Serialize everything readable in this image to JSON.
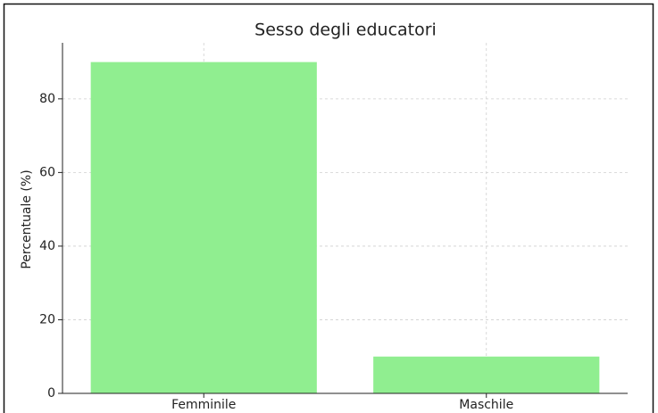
{
  "chart_data": {
    "type": "bar",
    "title": "Sesso degli educatori",
    "ylabel": "Percentuale (%)",
    "categories": [
      "Femminile",
      "Maschile"
    ],
    "values": [
      90,
      10
    ],
    "color": "#90ee90",
    "ylim": [
      0,
      94.5
    ],
    "yticks": [
      0,
      20,
      40,
      60,
      80
    ],
    "grid": true
  }
}
